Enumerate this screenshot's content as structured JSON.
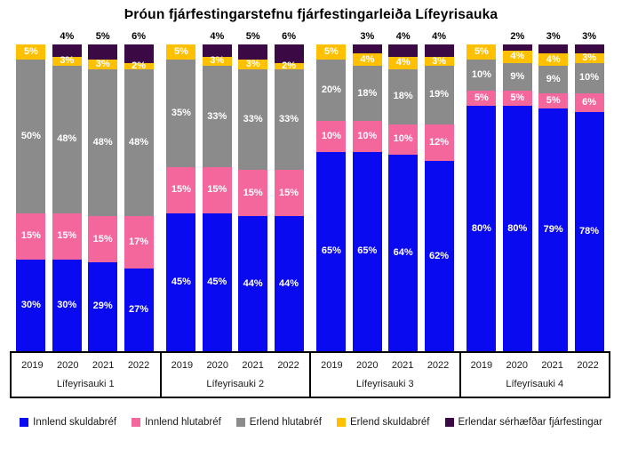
{
  "chart_data": {
    "type": "bar",
    "stacked": true,
    "orientation": "vertical",
    "unit": "%",
    "title": "Þróun fjárfestingarstefnu fjárfestingarleiða Lífeyrisauka",
    "groups": [
      "Lífeyrisauki 1",
      "Lífeyrisauki 2",
      "Lífeyrisauki 3",
      "Lífeyrisauki 4"
    ],
    "years": [
      "2019",
      "2020",
      "2021",
      "2022"
    ],
    "ylim": [
      0,
      100
    ],
    "grid": false,
    "legend_position": "bottom",
    "series": [
      {
        "name": "Innlend skuldabréf",
        "color": "#0a0af0",
        "label_placement": "inside",
        "values": [
          [
            30,
            30,
            29,
            27
          ],
          [
            45,
            45,
            44,
            44
          ],
          [
            65,
            65,
            64,
            62
          ],
          [
            80,
            80,
            79,
            78
          ]
        ]
      },
      {
        "name": "Innlend hlutabréf",
        "color": "#f4679d",
        "label_placement": "inside",
        "values": [
          [
            15,
            15,
            15,
            17
          ],
          [
            15,
            15,
            15,
            15
          ],
          [
            10,
            10,
            10,
            12
          ],
          [
            5,
            5,
            5,
            6
          ]
        ]
      },
      {
        "name": "Erlend hlutabréf",
        "color": "#8b8b8b",
        "label_placement": "inside",
        "values": [
          [
            50,
            48,
            48,
            48
          ],
          [
            35,
            33,
            33,
            33
          ],
          [
            20,
            18,
            18,
            19
          ],
          [
            10,
            9,
            9,
            10
          ]
        ]
      },
      {
        "name": "Erlend skuldabréf",
        "color": "#ffc000",
        "label_placement": "inside",
        "values": [
          [
            5,
            3,
            3,
            2
          ],
          [
            5,
            3,
            3,
            2
          ],
          [
            5,
            4,
            4,
            3
          ],
          [
            5,
            4,
            4,
            3
          ]
        ]
      },
      {
        "name": "Erlendar sérhæfðar fjárfestingar",
        "color": "#3b0a45",
        "label_placement": "outside-top",
        "values": [
          [
            0,
            4,
            5,
            6
          ],
          [
            0,
            4,
            5,
            6
          ],
          [
            0,
            3,
            4,
            4
          ],
          [
            0,
            2,
            3,
            3
          ]
        ]
      }
    ]
  }
}
